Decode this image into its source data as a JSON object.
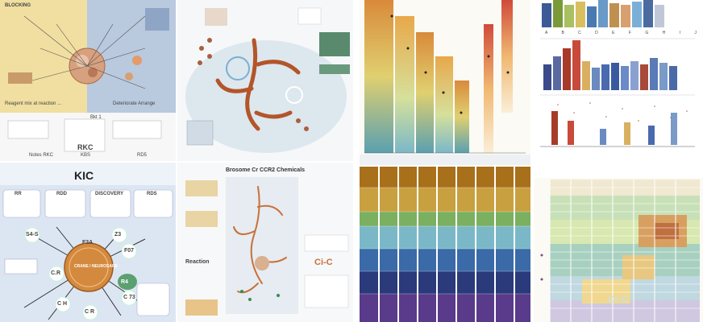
{
  "panels": {
    "top_left": {
      "tl_head": "BLOCKING",
      "center_label": "Bkt 1",
      "core_label": "RKC",
      "bottom_labels": [
        "Notes RKC",
        "KBS",
        "RD5"
      ],
      "left_bottom": "Reagent mix at reaction ...",
      "right_bottom": "Deteriorate Arrange"
    },
    "top_middle": {
      "bottom_title": "Brosome Cr CCR2 Chemicals"
    },
    "bottom_left": {
      "title": "KIC",
      "header_boxes": [
        "RR",
        "RDD",
        "DISCOVERY",
        "RDS"
      ],
      "center": "CRANE / NEUROSARE",
      "satellites": [
        "S4-S",
        "F3A",
        "C.R",
        "Z3",
        "F07",
        "R4",
        "C H",
        "C 73",
        "C R"
      ]
    },
    "bottom_middle": {
      "title": "Brosome Cr CCR2 Chemicals",
      "left_label": "Reaction",
      "right_label": "Ci-C"
    },
    "charts": {
      "top_row_letters": [
        "A",
        "B",
        "C",
        "D",
        "E",
        "F",
        "G",
        "H",
        "I",
        "J"
      ]
    },
    "watermark": "Cr-C"
  },
  "colors": {
    "accent_orange": "#c8703a",
    "navy": "#2a3a7a",
    "teal": "#3a8a8a"
  }
}
